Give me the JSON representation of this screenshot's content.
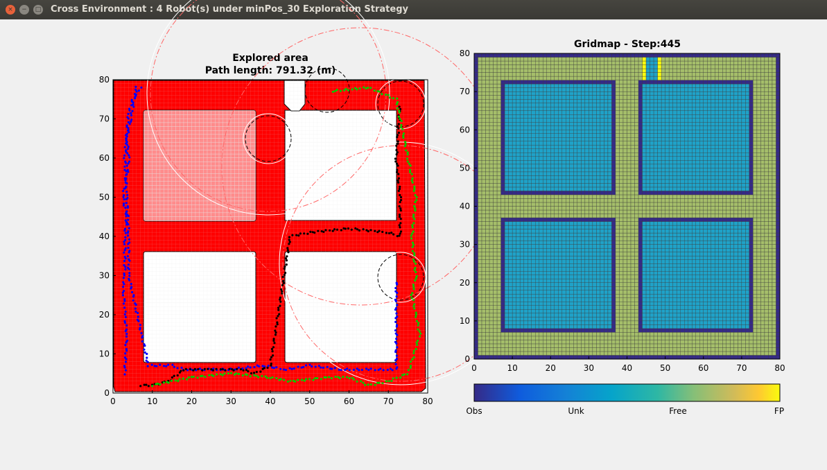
{
  "window": {
    "title": "Cross Environment : 4 Robot(s) under minPos_30 Exploration Strategy",
    "close_glyph": "×",
    "minimize_glyph": "−",
    "maximize_glyph": "□"
  },
  "left_plot": {
    "title_line1": "Explored area",
    "title_line2": "Path length: 791.32 (m)",
    "xticks": [
      "0",
      "10",
      "20",
      "30",
      "40",
      "50",
      "60",
      "70",
      "80"
    ],
    "yticks": [
      "0",
      "10",
      "20",
      "30",
      "40",
      "50",
      "60",
      "70",
      "80"
    ],
    "xlim": [
      0,
      80
    ],
    "ylim": [
      0,
      80
    ],
    "explored_color": "#ff0000",
    "obstacle_color": "#ffffff"
  },
  "right_plot": {
    "title": "Gridmap - Step:445",
    "xticks": [
      "0",
      "10",
      "20",
      "30",
      "40",
      "50",
      "60",
      "70",
      "80"
    ],
    "yticks": [
      "0",
      "10",
      "20",
      "30",
      "40",
      "50",
      "60",
      "70",
      "80"
    ],
    "xlim": [
      0,
      80
    ],
    "ylim": [
      0,
      80
    ],
    "colors": {
      "obs": "#352a87",
      "unk": "#1fa2c8",
      "free": "#a5be6a",
      "fp": "#f9fb0e"
    }
  },
  "colorbar": {
    "labels": [
      "Obs",
      "Unk",
      "Free",
      "FP"
    ]
  },
  "chart_data": [
    {
      "type": "scatter",
      "title": "Explored area\nPath length: 791.32 (m)",
      "xlim": [
        0,
        80
      ],
      "ylim": [
        0,
        80
      ],
      "grid": true,
      "series": [
        {
          "color": "#0000ff",
          "x": [
            3,
            3.5,
            3,
            3,
            2.5,
            3,
            3,
            3.5,
            2.5,
            3.5,
            4,
            3.5,
            4.5,
            6,
            7,
            5,
            4,
            3,
            3.5,
            4,
            4,
            9,
            15,
            18,
            25,
            30,
            38,
            44,
            50,
            58,
            65,
            72,
            72
          ],
          "y": [
            5,
            15,
            20,
            22,
            27,
            30,
            40,
            45,
            50,
            55,
            60,
            65,
            70,
            78,
            78,
            75,
            72,
            60,
            50,
            40,
            30,
            7,
            7,
            6,
            6,
            6,
            7,
            6,
            7,
            6,
            6,
            6,
            29
          ]
        },
        {
          "color": "#000000",
          "x": [
            7,
            10,
            14,
            18,
            24,
            28,
            33,
            36,
            40,
            45,
            50,
            60,
            70,
            73,
            73,
            72,
            73
          ],
          "y": [
            2,
            2,
            3,
            6,
            6,
            6,
            6,
            5,
            7,
            40,
            41,
            42,
            41,
            40,
            50,
            60,
            74
          ]
        },
        {
          "color": "#00cc00",
          "x": [
            10,
            20,
            30,
            40,
            45,
            55,
            60,
            65,
            70,
            75,
            78,
            76,
            77,
            76,
            77,
            75,
            72,
            65,
            55
          ],
          "y": [
            2,
            4,
            5,
            4,
            3,
            4,
            4,
            2,
            3,
            5,
            15,
            25,
            30,
            40,
            50,
            60,
            75,
            78,
            77
          ]
        }
      ]
    },
    {
      "type": "heatmap",
      "title": "Gridmap - Step:445",
      "xlim": [
        0,
        80
      ],
      "ylim": [
        0,
        80
      ],
      "classes": [
        "Obs",
        "Unk",
        "Free",
        "FP"
      ]
    }
  ]
}
